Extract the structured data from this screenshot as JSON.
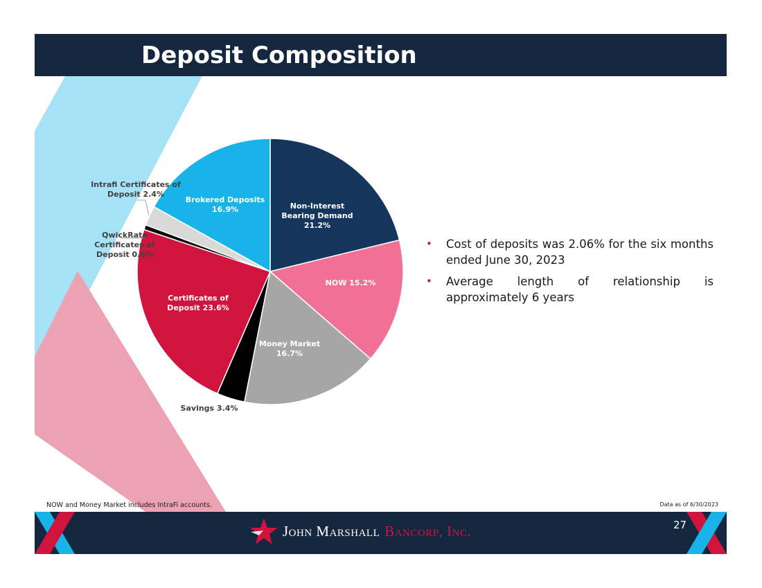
{
  "header": {
    "title": "Deposit Composition"
  },
  "chart_data": {
    "type": "pie",
    "title": "",
    "slices": [
      {
        "name": "Non-Interest Bearing Demand",
        "value": 21.2,
        "label_lines": [
          "Non-Interest",
          "Bearing Demand",
          "21.2%"
        ],
        "color": "#14365c",
        "label_color": "#ffffff",
        "label_position": "inside"
      },
      {
        "name": "NOW",
        "value": 15.2,
        "label_lines": [
          "NOW 15.2%"
        ],
        "color": "#f07096",
        "label_color": "#ffffff",
        "label_position": "inside"
      },
      {
        "name": "Money Market",
        "value": 16.7,
        "label_lines": [
          "Money Market",
          "16.7%"
        ],
        "color": "#a6a6a6",
        "label_color": "#ffffff",
        "label_position": "inside"
      },
      {
        "name": "Savings",
        "value": 3.4,
        "label_lines": [
          "Savings 3.4%"
        ],
        "color": "#000000",
        "label_color": "#404040",
        "label_position": "outside"
      },
      {
        "name": "Certificates of Deposit",
        "value": 23.6,
        "label_lines": [
          "Certificates of",
          "Deposit 23.6%"
        ],
        "color": "#d0143e",
        "label_color": "#ffffff",
        "label_position": "inside"
      },
      {
        "name": "QwickRate Certificates of Deposit",
        "value": 0.6,
        "label_lines": [
          "QwickRate",
          "Certificates of",
          "Deposit 0.6%"
        ],
        "color": "#0d0d0d",
        "label_color": "#404040",
        "label_position": "outside"
      },
      {
        "name": "Intrafi Certificates of Deposit",
        "value": 2.4,
        "label_lines": [
          "Intrafi Certificates of",
          "Deposit 2.4%"
        ],
        "color": "#d9d9d9",
        "label_color": "#404040",
        "label_position": "outside"
      },
      {
        "name": "Brokered Deposits",
        "value": 16.9,
        "label_lines": [
          "Brokered Deposits",
          "16.9%"
        ],
        "color": "#18b3e8",
        "label_color": "#ffffff",
        "label_position": "inside"
      }
    ],
    "start": "12 o'clock",
    "direction": "clockwise"
  },
  "bullets": [
    "Cost of deposits was 2.06% for the six months ended June 30, 2023",
    "Average length of relationship is approximately 6 years"
  ],
  "bullet_glyph": "•",
  "footnote": "NOW and Money Market includes IntraFi accounts.",
  "data_date": "Data as of 6/30/2023",
  "footer": {
    "logo_name": "John Marshall",
    "logo_suffix": "Bancorp, Inc.",
    "page_number": "27"
  },
  "colors": {
    "navy": "#14273f",
    "red": "#d0143e",
    "light_blue": "#a6e2f6",
    "pink": "#eba3b4",
    "blue": "#18b3e8"
  },
  "icons": [
    "star-logo-icon",
    "x-emblem-icon"
  ]
}
